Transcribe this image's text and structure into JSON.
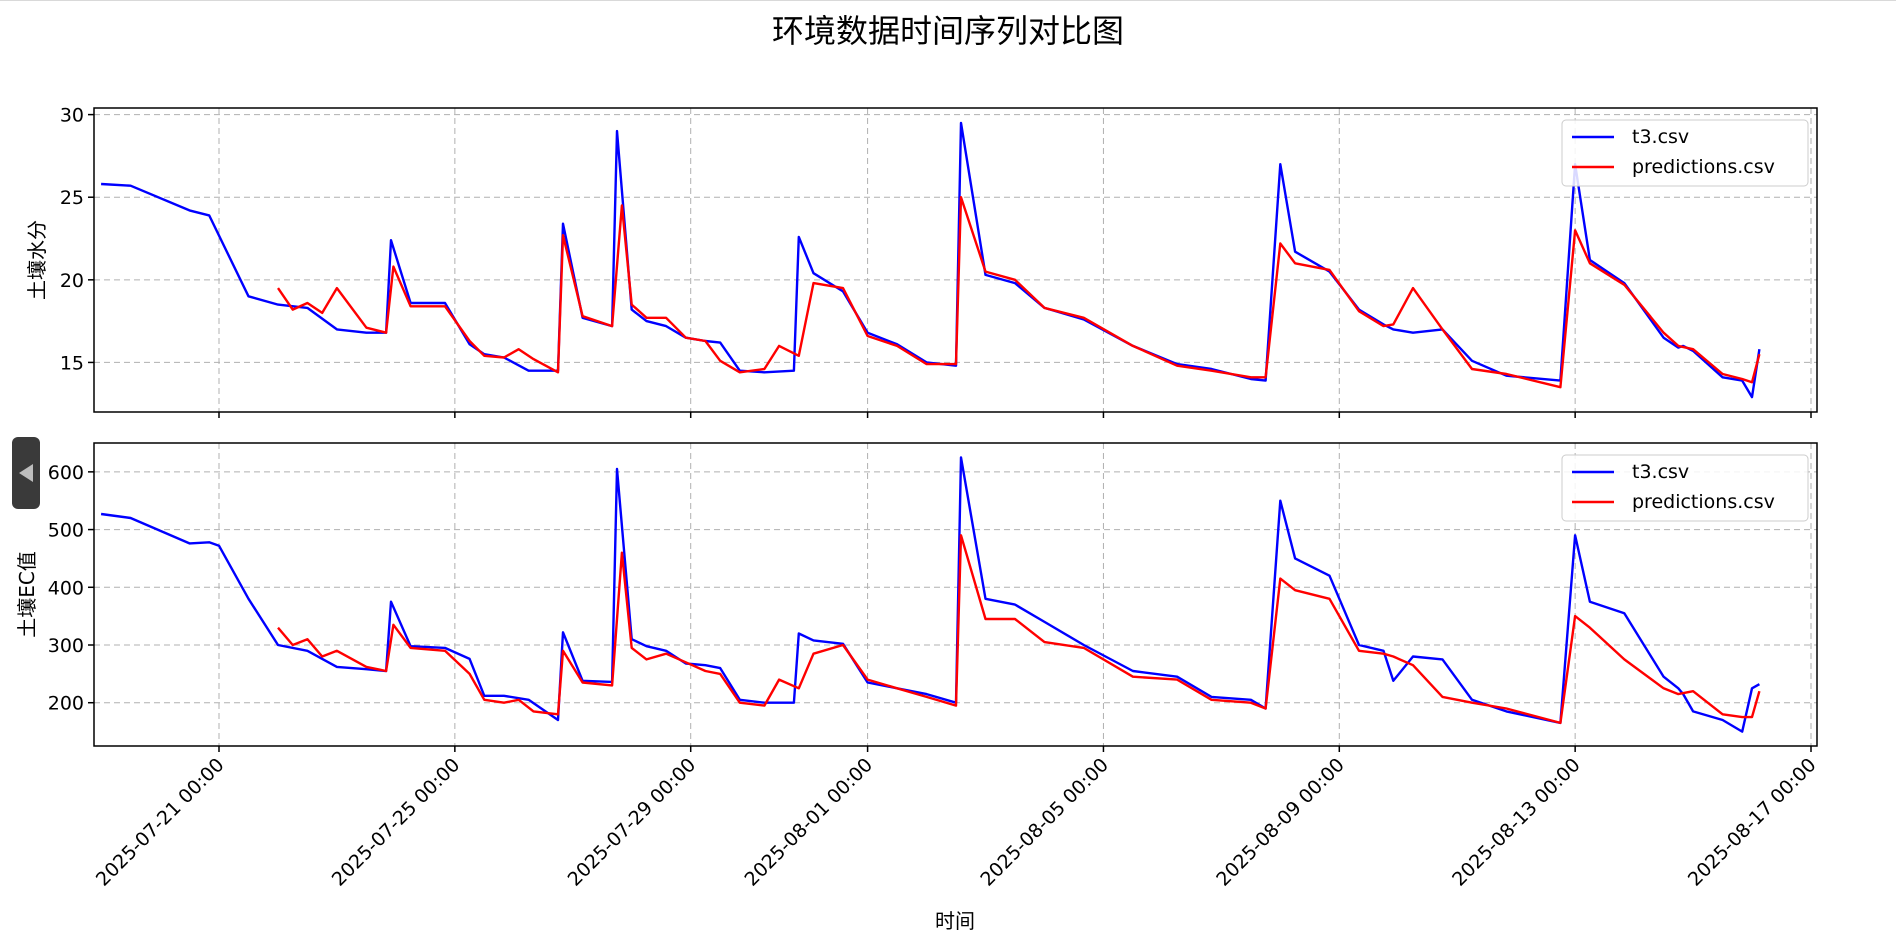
{
  "figure_title": "环境数据时间序列对比图",
  "xlabel": "时间",
  "x_ticks": [
    "2025-07-21 00:00",
    "2025-07-25 00:00",
    "2025-07-29 00:00",
    "2025-08-01 00:00",
    "2025-08-05 00:00",
    "2025-08-09 00:00",
    "2025-08-13 00:00",
    "2025-08-17 00:00"
  ],
  "colors": {
    "t3": "#0000ff",
    "pred": "#ff0000",
    "grid": "#b0b0b0",
    "axis": "#000000"
  },
  "side_tab": {
    "icon": "chevron-left-icon"
  },
  "chart_data": [
    {
      "type": "line",
      "ylabel": "土壤水分",
      "ylim": [
        12,
        30.4
      ],
      "yticks": [
        15,
        20,
        25,
        30
      ],
      "grid": true,
      "legend": "top-right",
      "series": [
        {
          "name": "t3.csv",
          "color": "#0000ff",
          "x": [
            "2025-07-19 00:00",
            "2025-07-19 12:00",
            "2025-07-20 12:00",
            "2025-07-20 20:00",
            "2025-07-21 12:00",
            "2025-07-22 00:00",
            "2025-07-22 12:00",
            "2025-07-23 00:00",
            "2025-07-23 12:00",
            "2025-07-23 20:00",
            "2025-07-23 22:00",
            "2025-07-24 06:00",
            "2025-07-24 20:00",
            "2025-07-25 06:00",
            "2025-07-25 12:00",
            "2025-07-25 20:00",
            "2025-07-26 06:00",
            "2025-07-26 18:00",
            "2025-07-26 20:00",
            "2025-07-27 04:00",
            "2025-07-27 16:00",
            "2025-07-27 18:00",
            "2025-07-28 00:00",
            "2025-07-28 06:00",
            "2025-07-28 14:00",
            "2025-07-28 22:00",
            "2025-07-29 06:00",
            "2025-07-29 12:00",
            "2025-07-29 20:00",
            "2025-07-30 06:00",
            "2025-07-30 18:00",
            "2025-07-30 20:00",
            "2025-07-31 02:00",
            "2025-07-31 14:00",
            "2025-08-01 00:00",
            "2025-08-01 12:00",
            "2025-08-02 00:00",
            "2025-08-02 12:00",
            "2025-08-02 14:00",
            "2025-08-03 00:00",
            "2025-08-03 12:00",
            "2025-08-04 00:00",
            "2025-08-04 16:00",
            "2025-08-05 12:00",
            "2025-08-06 06:00",
            "2025-08-06 20:00",
            "2025-08-07 12:00",
            "2025-08-07 18:00",
            "2025-08-08 00:00",
            "2025-08-08 06:00",
            "2025-08-08 20:00",
            "2025-08-09 08:00",
            "2025-08-09 18:00",
            "2025-08-09 22:00",
            "2025-08-10 06:00",
            "2025-08-10 18:00",
            "2025-08-11 06:00",
            "2025-08-11 20:00",
            "2025-08-12 18:00",
            "2025-08-13 00:00",
            "2025-08-13 06:00",
            "2025-08-13 20:00",
            "2025-08-14 12:00",
            "2025-08-14 18:00",
            "2025-08-14 20:00",
            "2025-08-15 00:00",
            "2025-08-15 12:00",
            "2025-08-15 20:00",
            "2025-08-16 00:00",
            "2025-08-16 03:00"
          ],
          "y": [
            25.8,
            25.7,
            24.2,
            23.9,
            19,
            18.5,
            18.3,
            17,
            16.8,
            16.8,
            22.4,
            18.6,
            18.6,
            16.1,
            15.5,
            15.3,
            14.5,
            14.5,
            23.4,
            17.7,
            17.2,
            29,
            18.2,
            17.5,
            17.2,
            16.5,
            16.3,
            16.2,
            14.5,
            14.4,
            14.5,
            22.6,
            20.4,
            19.3,
            16.8,
            16.1,
            15,
            14.8,
            29.5,
            20.3,
            19.8,
            18.3,
            17.6,
            16,
            14.9,
            14.6,
            14,
            13.9,
            27,
            21.7,
            20.5,
            18.2,
            17.3,
            17,
            16.8,
            17,
            15.1,
            14.2,
            13.9,
            27,
            21.2,
            19.8,
            16.5,
            15.9,
            16,
            15.7,
            14.1,
            13.9,
            12.9,
            15.8
          ]
        },
        {
          "name": "predictions.csv",
          "color": "#ff0000",
          "x": [
            "2025-07-22 00:00",
            "2025-07-22 06:00",
            "2025-07-22 12:00",
            "2025-07-22 18:00",
            "2025-07-23 00:00",
            "2025-07-23 12:00",
            "2025-07-23 20:00",
            "2025-07-23 23:00",
            "2025-07-24 06:00",
            "2025-07-24 20:00",
            "2025-07-25 06:00",
            "2025-07-25 12:00",
            "2025-07-25 20:00",
            "2025-07-26 02:00",
            "2025-07-26 08:00",
            "2025-07-26 18:00",
            "2025-07-26 20:00",
            "2025-07-27 04:00",
            "2025-07-27 16:00",
            "2025-07-27 20:00",
            "2025-07-28 00:00",
            "2025-07-28 06:00",
            "2025-07-28 14:00",
            "2025-07-28 22:00",
            "2025-07-29 06:00",
            "2025-07-29 12:00",
            "2025-07-29 20:00",
            "2025-07-30 06:00",
            "2025-07-30 12:00",
            "2025-07-30 20:00",
            "2025-07-31 02:00",
            "2025-07-31 14:00",
            "2025-08-01 00:00",
            "2025-08-01 12:00",
            "2025-08-02 00:00",
            "2025-08-02 12:00",
            "2025-08-02 14:00",
            "2025-08-03 00:00",
            "2025-08-03 12:00",
            "2025-08-04 00:00",
            "2025-08-04 16:00",
            "2025-08-05 12:00",
            "2025-08-06 06:00",
            "2025-08-06 20:00",
            "2025-08-07 12:00",
            "2025-08-07 18:00",
            "2025-08-08 00:00",
            "2025-08-08 06:00",
            "2025-08-08 20:00",
            "2025-08-09 08:00",
            "2025-08-09 18:00",
            "2025-08-09 22:00",
            "2025-08-10 06:00",
            "2025-08-10 18:00",
            "2025-08-11 06:00",
            "2025-08-11 20:00",
            "2025-08-12 18:00",
            "2025-08-13 00:00",
            "2025-08-13 06:00",
            "2025-08-13 20:00",
            "2025-08-14 12:00",
            "2025-08-14 18:00",
            "2025-08-15 00:00",
            "2025-08-15 12:00",
            "2025-08-15 20:00",
            "2025-08-16 00:00",
            "2025-08-16 03:00"
          ],
          "y": [
            19.5,
            18.2,
            18.6,
            18,
            19.5,
            17.1,
            16.8,
            20.8,
            18.4,
            18.4,
            16.3,
            15.4,
            15.3,
            15.8,
            15.2,
            14.4,
            22.7,
            17.8,
            17.2,
            24.5,
            18.5,
            17.7,
            17.7,
            16.5,
            16.3,
            15.1,
            14.4,
            14.6,
            16,
            15.4,
            19.8,
            19.5,
            16.6,
            16,
            14.9,
            14.9,
            25,
            20.5,
            20,
            18.3,
            17.7,
            16,
            14.8,
            14.5,
            14.1,
            14.1,
            22.2,
            21,
            20.6,
            18.1,
            17.2,
            17.3,
            19.5,
            17,
            14.6,
            14.3,
            13.5,
            23,
            21,
            19.7,
            16.8,
            16,
            15.8,
            14.3,
            14,
            13.8,
            15.5
          ]
        }
      ]
    },
    {
      "type": "line",
      "ylabel": "土壤EC值",
      "ylim": [
        125,
        650
      ],
      "yticks": [
        200,
        300,
        400,
        500,
        600
      ],
      "grid": true,
      "legend": "top-right",
      "series": [
        {
          "name": "t3.csv",
          "color": "#0000ff",
          "x": [
            "2025-07-19 00:00",
            "2025-07-19 12:00",
            "2025-07-20 12:00",
            "2025-07-20 20:00",
            "2025-07-21 00:00",
            "2025-07-21 12:00",
            "2025-07-22 00:00",
            "2025-07-22 12:00",
            "2025-07-23 00:00",
            "2025-07-23 12:00",
            "2025-07-23 20:00",
            "2025-07-23 22:00",
            "2025-07-24 06:00",
            "2025-07-24 20:00",
            "2025-07-25 06:00",
            "2025-07-25 12:00",
            "2025-07-25 20:00",
            "2025-07-26 06:00",
            "2025-07-26 18:00",
            "2025-07-26 20:00",
            "2025-07-27 04:00",
            "2025-07-27 16:00",
            "2025-07-27 18:00",
            "2025-07-28 00:00",
            "2025-07-28 06:00",
            "2025-07-28 14:00",
            "2025-07-28 22:00",
            "2025-07-29 06:00",
            "2025-07-29 12:00",
            "2025-07-29 20:00",
            "2025-07-30 06:00",
            "2025-07-30 18:00",
            "2025-07-30 20:00",
            "2025-07-31 02:00",
            "2025-07-31 14:00",
            "2025-08-01 00:00",
            "2025-08-01 12:00",
            "2025-08-02 00:00",
            "2025-08-02 12:00",
            "2025-08-02 14:00",
            "2025-08-03 00:00",
            "2025-08-03 12:00",
            "2025-08-04 00:00",
            "2025-08-04 16:00",
            "2025-08-05 12:00",
            "2025-08-06 06:00",
            "2025-08-06 20:00",
            "2025-08-07 12:00",
            "2025-08-07 18:00",
            "2025-08-08 00:00",
            "2025-08-08 06:00",
            "2025-08-08 20:00",
            "2025-08-09 08:00",
            "2025-08-09 18:00",
            "2025-08-09 22:00",
            "2025-08-10 06:00",
            "2025-08-10 18:00",
            "2025-08-11 06:00",
            "2025-08-11 20:00",
            "2025-08-12 18:00",
            "2025-08-13 00:00",
            "2025-08-13 06:00",
            "2025-08-13 20:00",
            "2025-08-14 12:00",
            "2025-08-14 18:00",
            "2025-08-14 20:00",
            "2025-08-15 00:00",
            "2025-08-15 12:00",
            "2025-08-15 20:00",
            "2025-08-16 00:00",
            "2025-08-16 03:00"
          ],
          "y": [
            527,
            520,
            476,
            478,
            472,
            380,
            300,
            290,
            262,
            258,
            255,
            375,
            298,
            295,
            276,
            212,
            212,
            205,
            170,
            322,
            238,
            236,
            605,
            310,
            298,
            290,
            268,
            265,
            260,
            205,
            200,
            200,
            320,
            308,
            302,
            235,
            225,
            215,
            200,
            625,
            380,
            370,
            340,
            300,
            255,
            245,
            210,
            205,
            190,
            550,
            450,
            420,
            300,
            290,
            238,
            280,
            275,
            205,
            185,
            165,
            490,
            375,
            355,
            245,
            225,
            215,
            185,
            170,
            150,
            225,
            232
          ]
        },
        {
          "name": "predictions.csv",
          "color": "#ff0000",
          "x": [
            "2025-07-22 00:00",
            "2025-07-22 06:00",
            "2025-07-22 12:00",
            "2025-07-22 18:00",
            "2025-07-23 00:00",
            "2025-07-23 12:00",
            "2025-07-23 20:00",
            "2025-07-23 23:00",
            "2025-07-24 06:00",
            "2025-07-24 20:00",
            "2025-07-25 06:00",
            "2025-07-25 12:00",
            "2025-07-25 20:00",
            "2025-07-26 02:00",
            "2025-07-26 08:00",
            "2025-07-26 18:00",
            "2025-07-26 20:00",
            "2025-07-27 04:00",
            "2025-07-27 16:00",
            "2025-07-27 20:00",
            "2025-07-28 00:00",
            "2025-07-28 06:00",
            "2025-07-28 14:00",
            "2025-07-28 22:00",
            "2025-07-29 06:00",
            "2025-07-29 12:00",
            "2025-07-29 20:00",
            "2025-07-30 06:00",
            "2025-07-30 12:00",
            "2025-07-30 20:00",
            "2025-07-31 02:00",
            "2025-07-31 14:00",
            "2025-08-01 00:00",
            "2025-08-01 12:00",
            "2025-08-02 00:00",
            "2025-08-02 12:00",
            "2025-08-02 14:00",
            "2025-08-03 00:00",
            "2025-08-03 12:00",
            "2025-08-04 00:00",
            "2025-08-04 16:00",
            "2025-08-05 12:00",
            "2025-08-06 06:00",
            "2025-08-06 20:00",
            "2025-08-07 12:00",
            "2025-08-07 18:00",
            "2025-08-08 00:00",
            "2025-08-08 06:00",
            "2025-08-08 20:00",
            "2025-08-09 08:00",
            "2025-08-09 18:00",
            "2025-08-09 22:00",
            "2025-08-10 06:00",
            "2025-08-10 18:00",
            "2025-08-11 06:00",
            "2025-08-11 20:00",
            "2025-08-12 18:00",
            "2025-08-13 00:00",
            "2025-08-13 06:00",
            "2025-08-13 20:00",
            "2025-08-14 12:00",
            "2025-08-14 18:00",
            "2025-08-15 00:00",
            "2025-08-15 12:00",
            "2025-08-15 20:00",
            "2025-08-16 00:00",
            "2025-08-16 03:00"
          ],
          "y": [
            330,
            300,
            310,
            280,
            290,
            262,
            255,
            335,
            295,
            290,
            250,
            205,
            200,
            205,
            185,
            180,
            290,
            235,
            230,
            460,
            295,
            275,
            285,
            270,
            255,
            250,
            200,
            195,
            240,
            225,
            285,
            300,
            240,
            225,
            210,
            195,
            490,
            345,
            345,
            305,
            295,
            245,
            240,
            205,
            200,
            190,
            415,
            395,
            380,
            290,
            285,
            280,
            265,
            210,
            200,
            190,
            165,
            350,
            330,
            275,
            225,
            215,
            220,
            180,
            175,
            175,
            220
          ]
        }
      ]
    }
  ]
}
